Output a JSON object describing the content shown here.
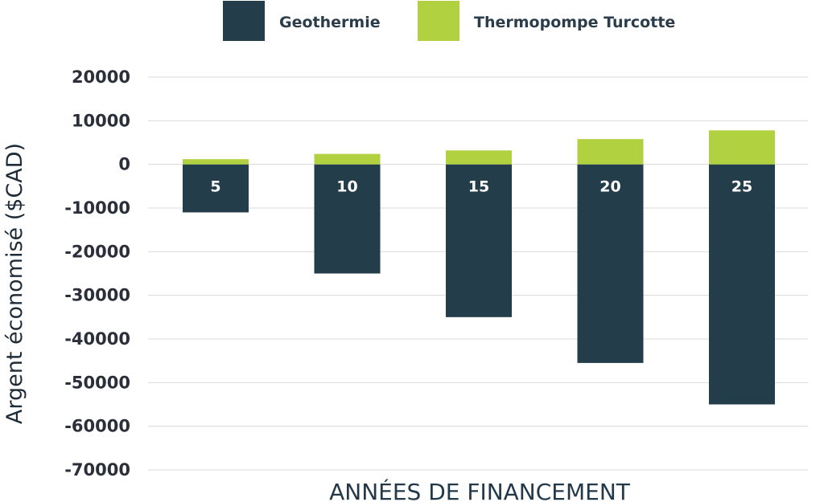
{
  "chart_data": {
    "type": "bar",
    "categories": [
      "5",
      "10",
      "15",
      "20",
      "25"
    ],
    "series": [
      {
        "name": "Geothermie",
        "values": [
          -11000,
          -25000,
          -35000,
          -45500,
          -55000
        ],
        "color": "#243d4b"
      },
      {
        "name": "Thermopompe Turcotte",
        "values": [
          1200,
          2400,
          3200,
          5800,
          7800
        ],
        "color": "#b2d141"
      }
    ],
    "title": "",
    "xlabel": "ANNÉES DE FINANCEMENT",
    "ylabel": "Argent économisé ($CAD)",
    "ylim": [
      -70000,
      20000
    ],
    "yticks": [
      20000,
      10000,
      0,
      -10000,
      -20000,
      -30000,
      -40000,
      -50000,
      -60000,
      -70000
    ],
    "grid": true,
    "legend_position": "top"
  }
}
